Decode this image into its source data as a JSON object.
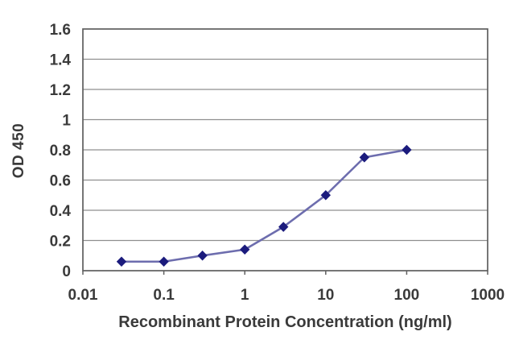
{
  "figure": {
    "background_color": "#ffffff",
    "text_color": "#3a3a3a"
  },
  "chart_data": {
    "type": "line",
    "title": "",
    "xlabel": "Recombinant Protein Concentration (ng/ml)",
    "ylabel": "OD 450",
    "x_scale": "log",
    "xlim": [
      0.01,
      1000
    ],
    "ylim": [
      0,
      1.6
    ],
    "x": [
      0.03,
      0.1,
      0.3,
      1,
      3,
      10,
      30,
      100
    ],
    "y": [
      0.06,
      0.06,
      0.1,
      0.14,
      0.29,
      0.5,
      0.75,
      0.8
    ],
    "x_ticks": [
      0.01,
      0.1,
      1,
      10,
      100,
      1000
    ],
    "x_tick_labels": [
      "0.01",
      "0.1",
      "1",
      "10",
      "100",
      "1000"
    ],
    "y_ticks": [
      0,
      0.2,
      0.4,
      0.6,
      0.8,
      1,
      1.2,
      1.4,
      1.6
    ],
    "y_tick_labels": [
      "0",
      "0.2",
      "0.4",
      "0.6",
      "0.8",
      "1",
      "1.2",
      "1.4",
      "1.6"
    ],
    "grid": "horizontal",
    "legend": "none",
    "marker": "diamond",
    "line_color": "#6d6dae",
    "marker_color": "#1b1b7d",
    "grid_color": "#8f8f8f",
    "frame_color": "#5f5f5f",
    "tick_text_color": "#3a3a3a"
  }
}
